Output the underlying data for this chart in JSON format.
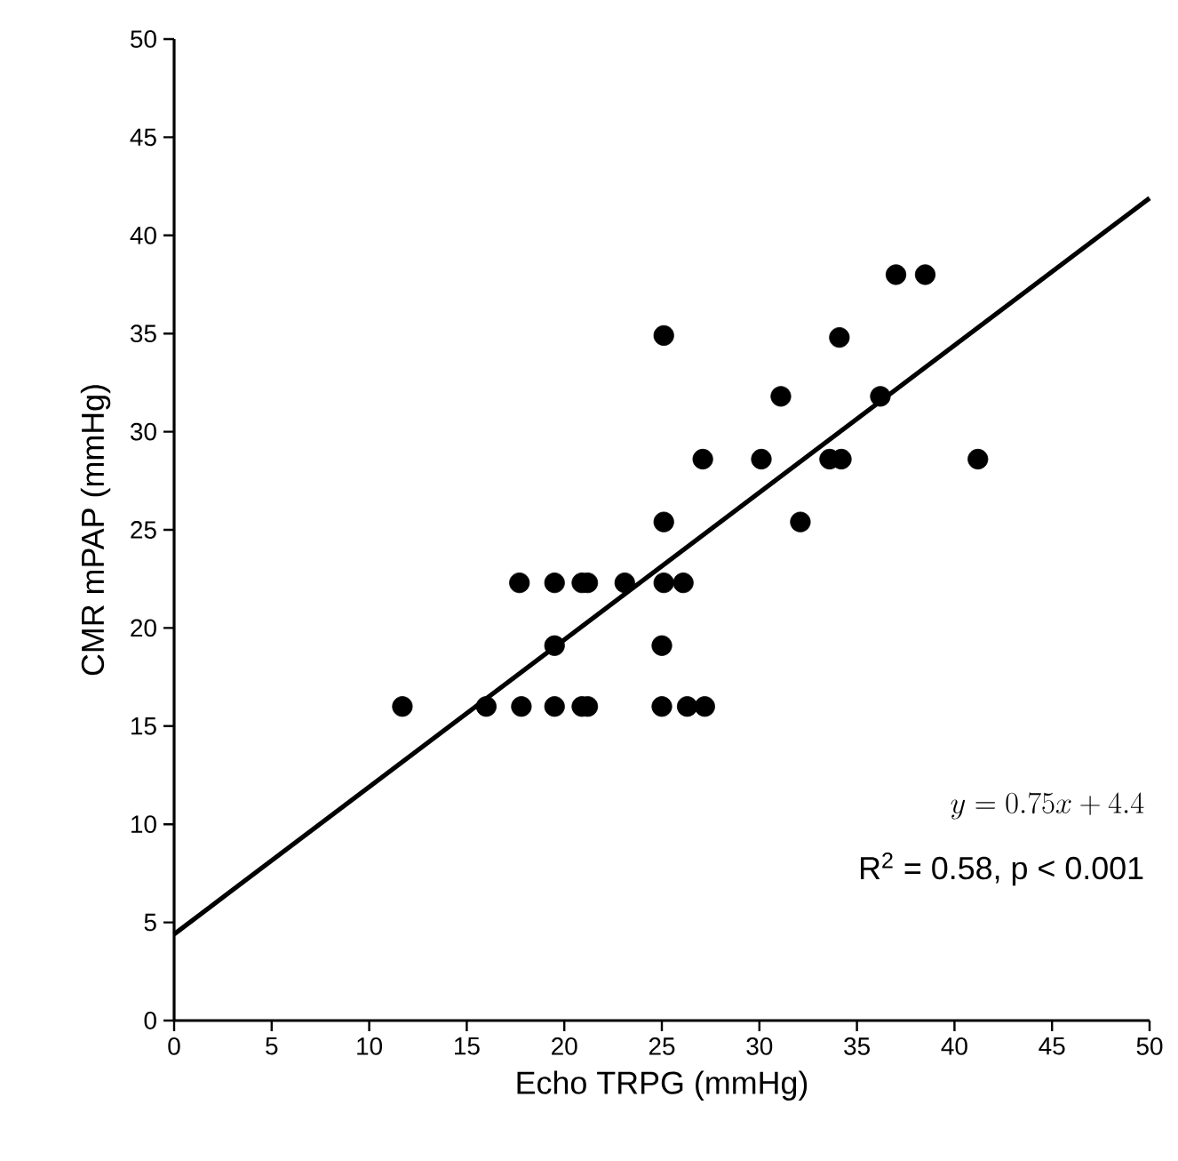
{
  "chart_data": {
    "type": "scatter",
    "xlabel": "Echo TRPG (mmHg)",
    "ylabel": "CMR mPAP (mmHg)",
    "xlim": [
      0,
      50
    ],
    "ylim": [
      0,
      50
    ],
    "xticks": [
      0,
      5,
      10,
      15,
      20,
      25,
      30,
      35,
      40,
      45,
      50
    ],
    "yticks": [
      0,
      5,
      10,
      15,
      20,
      25,
      30,
      35,
      40,
      45,
      50
    ],
    "grid": false,
    "series": [
      {
        "color": "#000000",
        "marker": "circle",
        "x": [
          11.7,
          16.0,
          17.8,
          19.5,
          20.9,
          21.2,
          25.0,
          26.3,
          27.2,
          19.5,
          25.0,
          17.7,
          19.5,
          20.9,
          21.2,
          23.1,
          25.1,
          26.1,
          25.1,
          25.1,
          27.1,
          30.1,
          33.6,
          34.2,
          41.2,
          31.1,
          36.2,
          32.1,
          34.1,
          37.0,
          38.5
        ],
        "values": [
          16.0,
          16.0,
          16.0,
          16.0,
          16.0,
          16.0,
          16.0,
          16.0,
          16.0,
          19.1,
          19.1,
          22.3,
          22.3,
          22.3,
          22.3,
          22.3,
          22.3,
          22.3,
          25.4,
          34.9,
          28.6,
          28.6,
          28.6,
          28.6,
          28.6,
          31.8,
          31.8,
          25.4,
          34.8,
          38.0,
          38.0
        ]
      },
      {
        "type": "line",
        "color": "#000000",
        "line_style": "solid",
        "marker": "none",
        "x": [
          0,
          50
        ],
        "values": [
          4.4,
          41.9
        ]
      }
    ],
    "annotations": [
      "y = 0.75x + 4.4",
      "R$^{2}$ = 0.58, p < 0.001"
    ]
  }
}
